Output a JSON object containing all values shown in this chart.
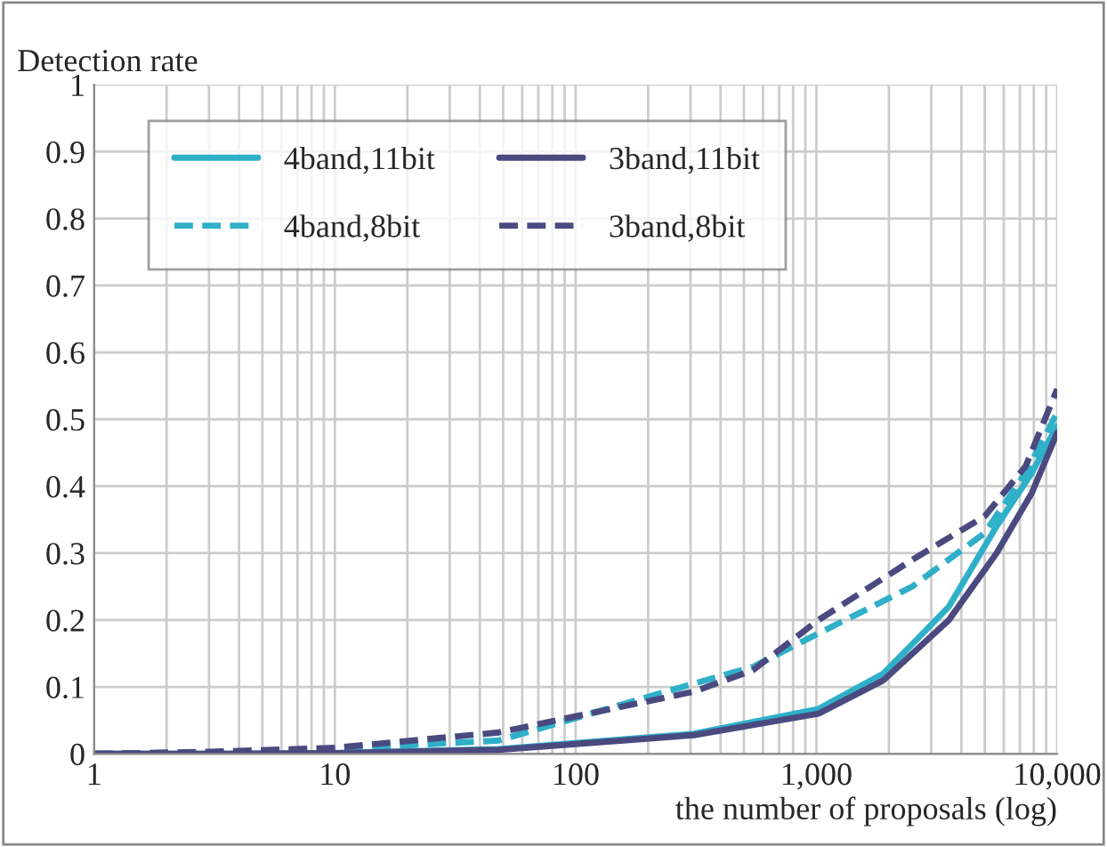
{
  "chart_data": {
    "type": "line",
    "ylabel": "Detection rate",
    "xlabel": "the number of proposals (log)",
    "log": "x",
    "xlim": [
      1,
      10000
    ],
    "xticks": [
      1,
      10,
      100,
      {
        "value": 1000,
        "label": "1,000"
      },
      {
        "value": 10000,
        "label": "10,000"
      }
    ],
    "ylim": [
      0,
      1
    ],
    "yticks": [
      0,
      0.1,
      0.2,
      0.3,
      0.4,
      0.5,
      0.6,
      0.7,
      0.8,
      0.9,
      1
    ],
    "grid": true,
    "legend": "top left",
    "series": [
      {
        "name": "4band,11bit",
        "color": "#2fb0c8",
        "line_style": "solid",
        "x": [
          1,
          3,
          10,
          48,
          310,
          1020,
          1900,
          3550,
          5600,
          7850,
          10000
        ],
        "values": [
          0,
          0,
          0.001,
          0.007,
          0.03,
          0.067,
          0.12,
          0.22,
          0.34,
          0.42,
          0.49
        ]
      },
      {
        "name": "4band,8bit",
        "color": "#2fb0c8",
        "line_style": "dashed",
        "x": [
          1,
          3,
          10,
          48,
          310,
          545,
          1020,
          2500,
          5000,
          7400,
          10000
        ],
        "values": [
          0,
          0.002,
          0.007,
          0.02,
          0.105,
          0.13,
          0.18,
          0.25,
          0.33,
          0.42,
          0.51
        ]
      },
      {
        "name": "3band,11bit",
        "color": "#4a4a80",
        "line_style": "solid",
        "x": [
          1,
          3,
          10,
          48,
          310,
          1020,
          1900,
          3550,
          5600,
          7850,
          10000
        ],
        "values": [
          0,
          0,
          0.001,
          0.006,
          0.028,
          0.06,
          0.11,
          0.2,
          0.3,
          0.39,
          0.48
        ]
      },
      {
        "name": "3band,8bit",
        "color": "#4a4a80",
        "line_style": "dashed",
        "x": [
          1,
          3,
          10,
          48,
          310,
          545,
          1020,
          2500,
          5000,
          7400,
          10000
        ],
        "values": [
          0,
          0.003,
          0.009,
          0.032,
          0.093,
          0.125,
          0.2,
          0.29,
          0.355,
          0.43,
          0.545
        ]
      }
    ]
  }
}
